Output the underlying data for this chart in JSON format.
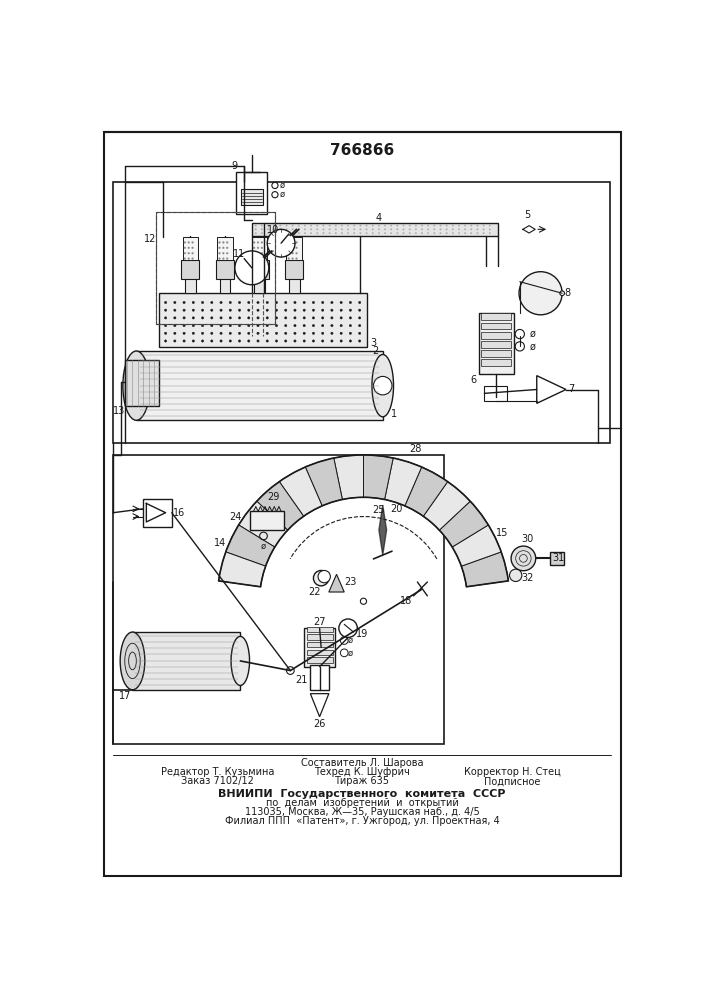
{
  "patent_number": "766866",
  "background_color": "#ffffff",
  "line_color": "#1a1a1a",
  "footer_col1_line1": "Редактор Т. Кузьмина",
  "footer_col1_line2": "Заказ 7102/12",
  "footer_col2_line0": "Составитель Л. Шарова",
  "footer_col2_line1": "Техред К. Шуфрич",
  "footer_col2_line2": "Тираж 635",
  "footer_col3_line1": "Корректор Н. Стец",
  "footer_col3_line2": "Подписное",
  "footer_vniipи": "ВНИИПИ  Государственного  комитета  СССР",
  "footer_line5": "по  делам  изобретений  и  открытий",
  "footer_line6": "113035, Москва, Ж—35, Раушская наб., д. 4/5",
  "footer_line7": "Филиал ППП  «Патент», г. Ужгород, ул. Проектная, 4"
}
